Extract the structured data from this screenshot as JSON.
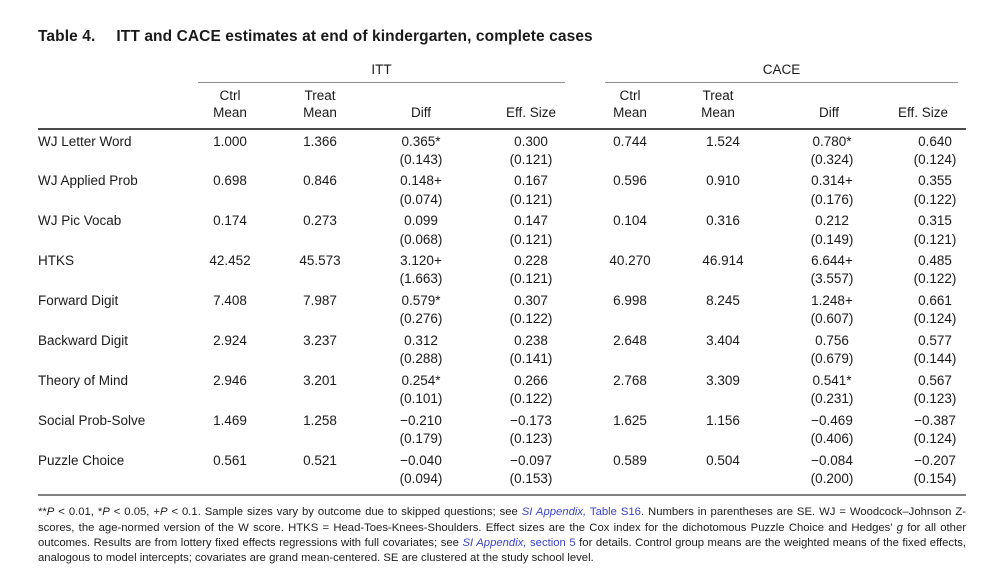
{
  "colors": {
    "background": "#ffffff",
    "text": "#1a1a1a",
    "link": "#3c44c8",
    "rule_dark": "#4a4a4a",
    "rule_medium": "#828282",
    "rule_light": "#909090"
  },
  "title": {
    "label": "Table 4.",
    "text": "ITT and CACE estimates at end of kindergarten, complete cases"
  },
  "table": {
    "groups": [
      {
        "label": "ITT",
        "columns": [
          {
            "l1": "Ctrl",
            "l2": "Mean"
          },
          {
            "l1": "Treat",
            "l2": "Mean"
          },
          {
            "l1": "",
            "l2": "Diff"
          },
          {
            "l1": "",
            "l2": "Eff. Size"
          }
        ]
      },
      {
        "label": "CACE",
        "columns": [
          {
            "l1": "Ctrl",
            "l2": "Mean"
          },
          {
            "l1": "Treat",
            "l2": "Mean"
          },
          {
            "l1": "",
            "l2": "Diff"
          },
          {
            "l1": "",
            "l2": "Eff. Size"
          }
        ]
      }
    ],
    "rows": [
      {
        "label": "WJ Letter Word",
        "itt": {
          "ctrl": "1.000",
          "treat": "1.366",
          "diff": "0.365*",
          "diff_se": "(0.143)",
          "eff": "0.300",
          "eff_se": "(0.121)"
        },
        "cace": {
          "ctrl": "0.744",
          "treat": "1.524",
          "diff": "0.780*",
          "diff_se": "(0.324)",
          "eff": "0.640",
          "eff_se": "(0.124)"
        }
      },
      {
        "label": "WJ Applied Prob",
        "itt": {
          "ctrl": "0.698",
          "treat": "0.846",
          "diff": "0.148+",
          "diff_se": "(0.074)",
          "eff": "0.167",
          "eff_se": "(0.121)"
        },
        "cace": {
          "ctrl": "0.596",
          "treat": "0.910",
          "diff": "0.314+",
          "diff_se": "(0.176)",
          "eff": "0.355",
          "eff_se": "(0.122)"
        }
      },
      {
        "label": "WJ Pic Vocab",
        "itt": {
          "ctrl": "0.174",
          "treat": "0.273",
          "diff": "0.099",
          "diff_se": "(0.068)",
          "eff": "0.147",
          "eff_se": "(0.121)"
        },
        "cace": {
          "ctrl": "0.104",
          "treat": "0.316",
          "diff": "0.212",
          "diff_se": "(0.149)",
          "eff": "0.315",
          "eff_se": "(0.121)"
        }
      },
      {
        "label": "HTKS",
        "itt": {
          "ctrl": "42.452",
          "treat": "45.573",
          "diff": "3.120+",
          "diff_se": "(1.663)",
          "eff": "0.228",
          "eff_se": "(0.121)"
        },
        "cace": {
          "ctrl": "40.270",
          "treat": "46.914",
          "diff": "6.644+",
          "diff_se": "(3.557)",
          "eff": "0.485",
          "eff_se": "(0.122)"
        }
      },
      {
        "label": "Forward Digit",
        "itt": {
          "ctrl": "7.408",
          "treat": "7.987",
          "diff": "0.579*",
          "diff_se": "(0.276)",
          "eff": "0.307",
          "eff_se": "(0.122)"
        },
        "cace": {
          "ctrl": "6.998",
          "treat": "8.245",
          "diff": "1.248+",
          "diff_se": "(0.607)",
          "eff": "0.661",
          "eff_se": "(0.124)"
        }
      },
      {
        "label": "Backward Digit",
        "itt": {
          "ctrl": "2.924",
          "treat": "3.237",
          "diff": "0.312",
          "diff_se": "(0.288)",
          "eff": "0.238",
          "eff_se": "(0.141)"
        },
        "cace": {
          "ctrl": "2.648",
          "treat": "3.404",
          "diff": "0.756",
          "diff_se": "(0.679)",
          "eff": "0.577",
          "eff_se": "(0.144)"
        }
      },
      {
        "label": "Theory of Mind",
        "itt": {
          "ctrl": "2.946",
          "treat": "3.201",
          "diff": "0.254*",
          "diff_se": "(0.101)",
          "eff": "0.266",
          "eff_se": "(0.122)"
        },
        "cace": {
          "ctrl": "2.768",
          "treat": "3.309",
          "diff": "0.541*",
          "diff_se": "(0.231)",
          "eff": "0.567",
          "eff_se": "(0.123)"
        }
      },
      {
        "label": "Social Prob-Solve",
        "itt": {
          "ctrl": "1.469",
          "treat": "1.258",
          "diff": "−0.210",
          "diff_se": "(0.179)",
          "eff": "−0.173",
          "eff_se": "(0.123)"
        },
        "cace": {
          "ctrl": "1.625",
          "treat": "1.156",
          "diff": "−0.469",
          "diff_se": "(0.406)",
          "eff": "−0.387",
          "eff_se": "(0.124)"
        }
      },
      {
        "label": "Puzzle Choice",
        "itt": {
          "ctrl": "0.561",
          "treat": "0.521",
          "diff": "−0.040",
          "diff_se": "(0.094)",
          "eff": "−0.097",
          "eff_se": "(0.153)"
        },
        "cace": {
          "ctrl": "0.589",
          "treat": "0.504",
          "diff": "−0.084",
          "diff_se": "(0.200)",
          "eff": "−0.207",
          "eff_se": "(0.154)"
        }
      }
    ]
  },
  "footnote": {
    "segments": [
      {
        "t": "**",
        "s": "plain"
      },
      {
        "t": "P",
        "s": "italic"
      },
      {
        "t": " < 0.01, *",
        "s": "plain"
      },
      {
        "t": "P",
        "s": "italic"
      },
      {
        "t": " < 0.05, +",
        "s": "plain"
      },
      {
        "t": "P",
        "s": "italic"
      },
      {
        "t": " < 0.1. Sample sizes vary by outcome due to skipped questions; see ",
        "s": "plain"
      },
      {
        "t": "SI Appendix,",
        "s": "link-italic"
      },
      {
        "t": " Table S16",
        "s": "link"
      },
      {
        "t": ". Numbers in parentheses are SE. WJ = Woodcock–Johnson Z-scores, the age-normed version of the W score. HTKS = Head-Toes-Knees-Shoulders. Effect sizes are the Cox index for the dichotomous Puzzle Choice and Hedges’ ",
        "s": "plain"
      },
      {
        "t": "g",
        "s": "italic"
      },
      {
        "t": " for all other outcomes. Results are from lottery fixed effects regressions with full covariates; see ",
        "s": "plain"
      },
      {
        "t": "SI Appendix,",
        "s": "link-italic"
      },
      {
        "t": " section 5",
        "s": "link"
      },
      {
        "t": " for details. Control group means are the weighted means of the fixed effects, analogous to model intercepts; covariates are grand mean-centered. SE are clustered at the study school level.",
        "s": "plain"
      }
    ]
  }
}
